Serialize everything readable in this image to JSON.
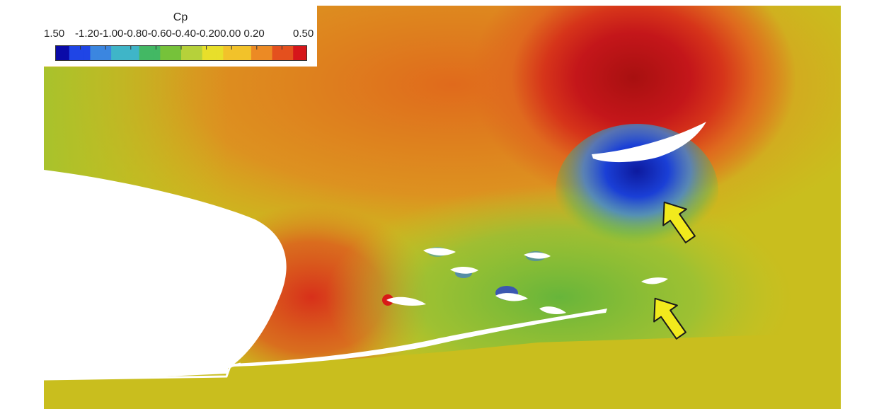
{
  "colorbar": {
    "title": "Cp",
    "ticks": [
      "1.50",
      "-1.20-1.00-0.80-0.60-0.40-0.200.00 0.20",
      "0.50"
    ],
    "colors": [
      "#0a0aa8",
      "#1f45e6",
      "#3b86e0",
      "#3fb5c8",
      "#43b864",
      "#76c23a",
      "#b6d13a",
      "#e8df2a",
      "#f2c22a",
      "#ec8a24",
      "#e4501e",
      "#d6161a"
    ]
  },
  "field_colors": {
    "background": "#c9be1e",
    "high_pressure": "#b31512",
    "suction": "#1424b0",
    "arrow": "#f2ea1c"
  },
  "annotations": [
    {
      "name": "yellow-arrow-upper",
      "points_to": "upper-elements-suction"
    },
    {
      "name": "yellow-arrow-lower",
      "points_to": "small-slat-element"
    }
  ]
}
